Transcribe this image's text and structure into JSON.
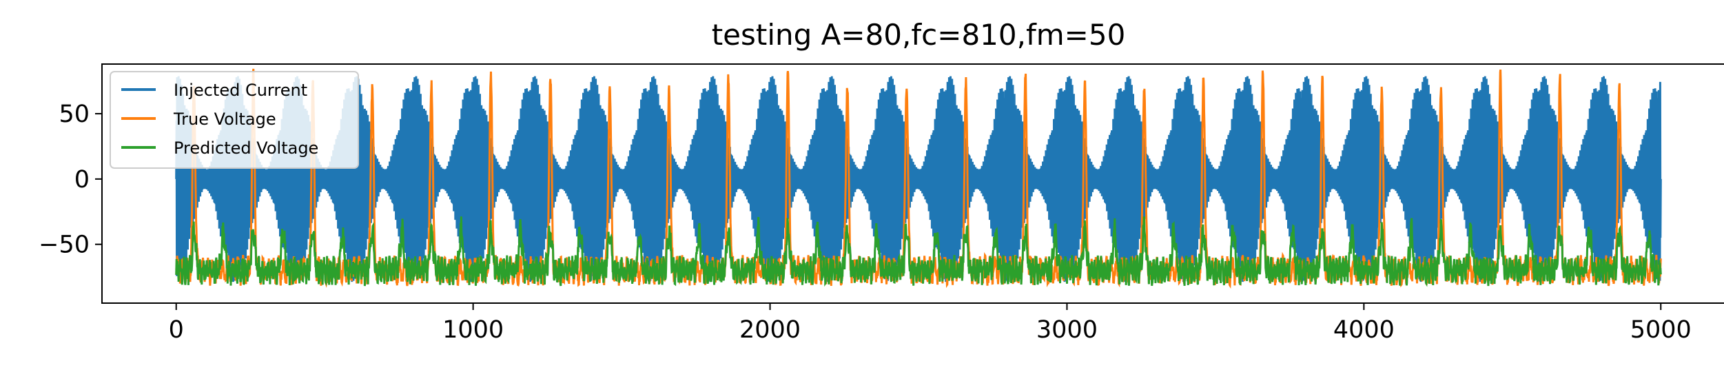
{
  "chart_data": {
    "type": "line",
    "title": "testing A=80,fc=810,fm=50",
    "xlabel": "",
    "ylabel": "",
    "xlim": [
      -250,
      5250
    ],
    "ylim": [
      -95,
      88
    ],
    "xticks": [
      0,
      1000,
      2000,
      3000,
      4000,
      5000
    ],
    "xtick_labels": [
      "0",
      "1000",
      "2000",
      "3000",
      "4000",
      "5000"
    ],
    "yticks": [
      -50,
      0,
      50
    ],
    "ytick_labels": [
      "−50",
      "0",
      "50"
    ],
    "grid": false,
    "legend_position": "top-left",
    "x_range": [
      0,
      5000
    ],
    "series": [
      {
        "name": "Injected Current",
        "color": "#1f77b4",
        "description": "amplitude-modulated carrier, envelope between about 0 and 80, oscillating roughly -80..80",
        "amplitude": 80,
        "envelope_period": 200
      },
      {
        "name": "True Voltage",
        "color": "#ff7f0e",
        "baseline": -70,
        "spike_peak": 75,
        "spike_period": 200,
        "first_spike_x": 60
      },
      {
        "name": "Predicted Voltage",
        "color": "#2ca02c",
        "baseline": -70,
        "bump_peak": -40,
        "bump_period": 100
      }
    ]
  }
}
